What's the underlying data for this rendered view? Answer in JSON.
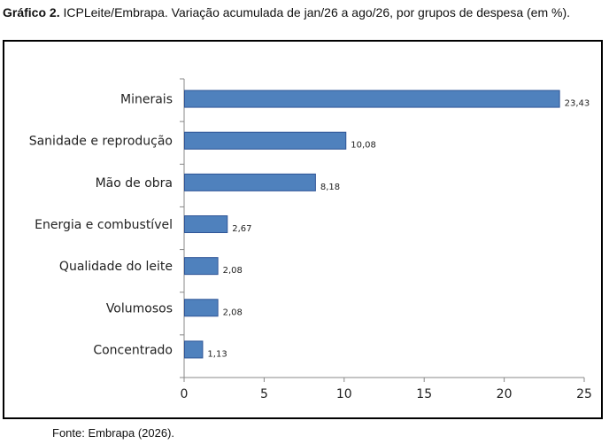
{
  "caption": {
    "prefix": "Gráfico 2.",
    "text": " ICPLeite/Embrapa. Variação acumulada de jan/26 a ago/26, por grupos de despesa (em %)."
  },
  "source": "Fonte: Embrapa (2026).",
  "chart_data": {
    "type": "bar",
    "orientation": "horizontal",
    "title": "",
    "xlabel": "",
    "ylabel": "",
    "categories": [
      "Minerais",
      "Sanidade e reprodução",
      "Mão de obra",
      "Energia e combustível",
      "Qualidade do leite",
      "Volumosos",
      "Concentrado"
    ],
    "values": [
      23.43,
      10.08,
      8.18,
      2.67,
      2.08,
      2.08,
      1.13
    ],
    "value_labels": [
      "23,43",
      "10,08",
      "8,18",
      "2,67",
      "2,08",
      "2,08",
      "1,13"
    ],
    "xlim": [
      0,
      25
    ],
    "xticks": [
      0,
      5,
      10,
      15,
      20,
      25
    ],
    "grid": false,
    "legend": "none",
    "bar_color": "#4f81bd",
    "bar_edge_color": "#2f5597"
  }
}
